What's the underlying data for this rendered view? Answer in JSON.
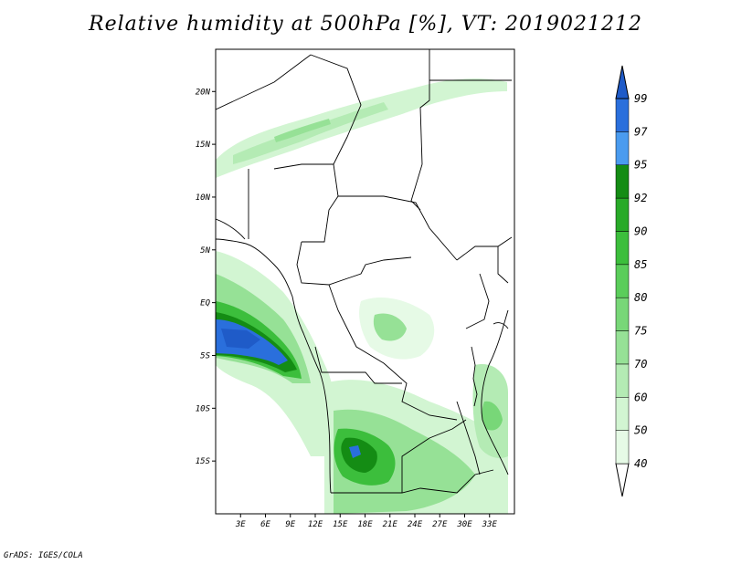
{
  "title": "Relative humidity at 500hPa [%], VT: 2019021212",
  "credit": "GrADS: IGES/COLA",
  "map": {
    "lon_range": [
      0,
      36
    ],
    "lat_range": [
      -20,
      24
    ],
    "lat_ticks": [
      {
        "value": 20,
        "label": "20N"
      },
      {
        "value": 15,
        "label": "15N"
      },
      {
        "value": 10,
        "label": "10N"
      },
      {
        "value": 5,
        "label": "5N"
      },
      {
        "value": 0,
        "label": "EQ"
      },
      {
        "value": -5,
        "label": "5S"
      },
      {
        "value": -10,
        "label": "10S"
      },
      {
        "value": -15,
        "label": "15S"
      }
    ],
    "lon_ticks": [
      {
        "value": 3,
        "label": "3E"
      },
      {
        "value": 6,
        "label": "6E"
      },
      {
        "value": 9,
        "label": "9E"
      },
      {
        "value": 12,
        "label": "12E"
      },
      {
        "value": 15,
        "label": "15E"
      },
      {
        "value": 18,
        "label": "18E"
      },
      {
        "value": 21,
        "label": "21E"
      },
      {
        "value": 24,
        "label": "24E"
      },
      {
        "value": 27,
        "label": "27E"
      },
      {
        "value": 30,
        "label": "30E"
      },
      {
        "value": 33,
        "label": "33E"
      }
    ]
  },
  "colorbar": {
    "levels": [
      {
        "label": "40",
        "color": "#e6fae6"
      },
      {
        "label": "50",
        "color": "#d2f5d2"
      },
      {
        "label": "60",
        "color": "#b4ebb4"
      },
      {
        "label": "70",
        "color": "#96e196"
      },
      {
        "label": "75",
        "color": "#78d778"
      },
      {
        "label": "80",
        "color": "#5acd5a"
      },
      {
        "label": "85",
        "color": "#3cbe3c"
      },
      {
        "label": "90",
        "color": "#28aa28"
      },
      {
        "label": "92",
        "color": "#148c14"
      },
      {
        "label": "95",
        "color": "#4a9bef"
      },
      {
        "label": "97",
        "color": "#2a6fdc"
      },
      {
        "label": "99",
        "color": "#1f5bc8"
      }
    ]
  }
}
